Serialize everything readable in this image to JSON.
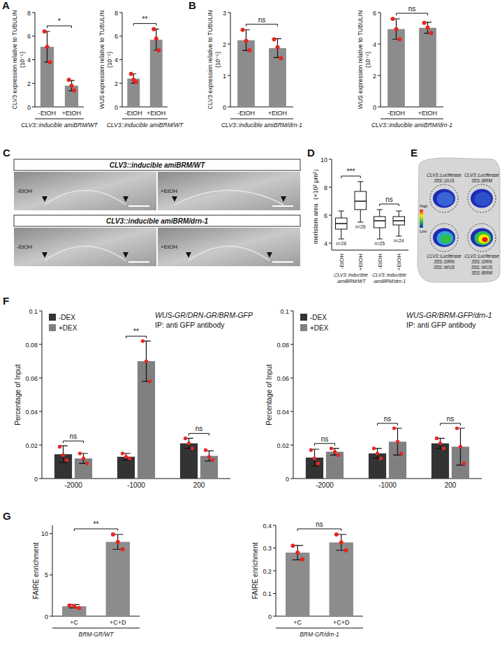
{
  "chart_data": [
    {
      "type": "bar",
      "panel_label": "A",
      "y_label": [
        "CLV3 expression  relative to TUBULIN",
        "(10⁻⁵)"
      ],
      "x_label": "CLV3::inducible amiBRM/WT",
      "categories": [
        "-EtOH",
        "+EtOH"
      ],
      "values": [
        5.1,
        1.8
      ],
      "errors": [
        1.3,
        0.45
      ],
      "points": [
        [
          6.4,
          3.8,
          5.1
        ],
        [
          2.3,
          1.4,
          1.8
        ]
      ],
      "ylim": [
        0,
        8
      ],
      "yticks": [
        0,
        2,
        4,
        6,
        8
      ],
      "color": "#8c8c8c",
      "significance": "*"
    },
    {
      "type": "bar",
      "y_label": [
        "WUS expression relative to TUBULIN",
        "(10⁻⁵)"
      ],
      "x_label": "CLV3::inducible amiBRM/WT",
      "categories": [
        "-EtOH",
        "+EtOH"
      ],
      "values": [
        2.4,
        5.7
      ],
      "errors": [
        0.4,
        0.9
      ],
      "points": [
        [
          2.8,
          2.1,
          2.3
        ],
        [
          6.6,
          4.8,
          5.8
        ]
      ],
      "ylim": [
        0,
        8
      ],
      "yticks": [
        0,
        2,
        4,
        6,
        8
      ],
      "color": "#8c8c8c",
      "significance": "**"
    },
    {
      "type": "bar",
      "panel_label": "B",
      "y_label": [
        "CLV3 expression  relative to TUBULIN",
        "(10⁻⁵)"
      ],
      "x_label": "CLV3::inducible amiBRM/drn-1",
      "categories": [
        "-EtOH",
        "+EtOH"
      ],
      "values": [
        2.12,
        1.87
      ],
      "errors": [
        0.33,
        0.3
      ],
      "points": [
        [
          2.45,
          1.8,
          2.1
        ],
        [
          2.15,
          1.55,
          1.9
        ]
      ],
      "ylim": [
        0,
        3
      ],
      "yticks": [
        0,
        1,
        2,
        3
      ],
      "color": "#8c8c8c",
      "significance": "ns"
    },
    {
      "type": "bar",
      "y_label": [
        "WUS expression relative to TUBULIN",
        "(10⁻⁵)"
      ],
      "x_label": "CLV3::inducible amiBRM/drn-1",
      "categories": [
        "-EtOH",
        "+EtOH"
      ],
      "values": [
        4.95,
        5.03
      ],
      "errors": [
        0.65,
        0.35
      ],
      "points": [
        [
          5.6,
          4.3,
          4.95
        ],
        [
          5.35,
          4.7,
          5.05
        ]
      ],
      "ylim": [
        0,
        6
      ],
      "yticks": [
        0,
        2,
        4,
        6
      ],
      "color": "#8c8c8c",
      "significance": "ns"
    },
    {
      "type": "image",
      "panel_label": "C",
      "rows": [
        {
          "title": "CLV3::inducible amiBRM/WT",
          "labels": [
            "-EtOH",
            "+EtOH"
          ]
        },
        {
          "title": "CLV3::inducible amiBRM/drn-1",
          "labels": [
            "-EtOH",
            "+EtOH"
          ]
        }
      ]
    },
    {
      "type": "box",
      "panel_label": "D",
      "y_label": "meristem area（×10² μm²）",
      "categories": [
        "-EtOH",
        "+EtOH",
        "-EtOH",
        "+EtOH"
      ],
      "group_labels": [
        [
          "CLV3::inducible",
          "-amiBRM/WT"
        ],
        [
          "CLV3::inducible",
          "-amiBRM/drn-1"
        ]
      ],
      "boxes": [
        {
          "min": 4.3,
          "q1": 5.0,
          "median": 5.4,
          "q3": 5.8,
          "max": 6.3,
          "n_label": "n=26"
        },
        {
          "min": 5.5,
          "q1": 6.4,
          "median": 7.0,
          "q3": 7.7,
          "max": 8.4,
          "n_label": "n=26"
        },
        {
          "min": 4.3,
          "q1": 5.1,
          "median": 5.6,
          "q3": 5.9,
          "max": 6.4,
          "n_label": "n=25"
        },
        {
          "min": 4.5,
          "q1": 5.3,
          "median": 5.6,
          "q3": 5.9,
          "max": 6.3,
          "n_label": "n=24"
        }
      ],
      "ylim": [
        3.5,
        10
      ],
      "yticks": [
        4,
        6,
        8,
        10
      ],
      "significance": [
        "***",
        "ns"
      ]
    },
    {
      "type": "image",
      "panel_label": "E",
      "scale_labels": [
        "High",
        "Low"
      ],
      "spots": [
        {
          "labels": [
            "CLV3::Luciferase",
            "35S::GUS"
          ]
        },
        {
          "labels": [
            "CLV3::Luciferase",
            "35S::BRM"
          ]
        },
        {
          "labels": [
            "CLV3::Luciferase",
            "35S::DRN",
            "35S::WUS"
          ]
        },
        {
          "labels": [
            "CLV3::Luciferase",
            "35S::DRN",
            "35S::WUS",
            "35S::BRM"
          ]
        }
      ]
    },
    {
      "type": "bar",
      "panel_label": "F",
      "title": [
        "WUS-GR/DRN-GR/BRM-GFP",
        "IP: anti GFP antibody"
      ],
      "y_label": "Percentage of Input",
      "categories": [
        "-2000",
        "-1000",
        "200"
      ],
      "legend": "top-left",
      "series": [
        {
          "name": "-DEX",
          "color": "#333333",
          "values": [
            0.0145,
            0.013,
            0.021
          ],
          "errors": [
            0.005,
            0.002,
            0.003
          ],
          "points": [
            [
              0.019,
              0.011,
              0.014
            ],
            [
              0.015,
              0.012,
              0.013
            ],
            [
              0.024,
              0.018,
              0.021
            ]
          ]
        },
        {
          "name": "+DEX",
          "color": "#808080",
          "values": [
            0.012,
            0.07,
            0.0135
          ],
          "errors": [
            0.003,
            0.012,
            0.003
          ],
          "points": [
            [
              0.015,
              0.009,
              0.012
            ],
            [
              0.082,
              0.058,
              0.07
            ],
            [
              0.017,
              0.011,
              0.013
            ]
          ]
        }
      ],
      "ylim": [
        0,
        0.1
      ],
      "yticks": [
        0,
        0.02,
        0.04,
        0.06,
        0.08,
        0.1
      ],
      "significance": [
        "ns",
        "**",
        "ns"
      ]
    },
    {
      "type": "bar",
      "title": [
        "WUS-GR/BRM-GFP/drn-1",
        "IP: anti GFP antibody"
      ],
      "y_label": "Percentage of Input",
      "categories": [
        "-2000",
        "-1000",
        "200"
      ],
      "legend": "top-left",
      "series": [
        {
          "name": "-DEX",
          "color": "#333333",
          "values": [
            0.0125,
            0.015,
            0.021
          ],
          "errors": [
            0.005,
            0.003,
            0.003
          ],
          "points": [
            [
              0.017,
              0.009,
              0.012
            ],
            [
              0.018,
              0.012,
              0.015
            ],
            [
              0.024,
              0.018,
              0.021
            ]
          ]
        },
        {
          "name": "+DEX",
          "color": "#808080",
          "values": [
            0.016,
            0.022,
            0.019
          ],
          "errors": [
            0.002,
            0.008,
            0.011
          ],
          "points": [
            [
              0.018,
              0.014,
              0.016
            ],
            [
              0.03,
              0.015,
              0.022
            ],
            [
              0.03,
              0.009,
              0.019
            ]
          ]
        }
      ],
      "ylim": [
        0,
        0.1
      ],
      "yticks": [
        0,
        0.02,
        0.04,
        0.06,
        0.08,
        0.1
      ],
      "significance": [
        "ns",
        "ns",
        "ns"
      ]
    },
    {
      "type": "bar",
      "panel_label": "G",
      "y_label": "FAIRE enrichment",
      "x_label": "BRM-GR/WT",
      "categories": [
        "+C",
        "+C+D"
      ],
      "values": [
        1.2,
        9.0
      ],
      "errors": [
        0.2,
        0.9
      ],
      "points": [
        [
          1.3,
          1.0,
          1.2
        ],
        [
          9.9,
          8.1,
          9.0
        ]
      ],
      "ylim": [
        0,
        11
      ],
      "yticks": [
        0,
        5,
        10
      ],
      "color": "#8c8c8c",
      "significance": "**"
    },
    {
      "type": "bar",
      "y_label": "FAIRE enrichment",
      "x_label": "BRM-GR/drn-1",
      "categories": [
        "+C",
        "+C+D"
      ],
      "values": [
        0.28,
        0.325
      ],
      "errors": [
        0.032,
        0.035
      ],
      "points": [
        [
          0.31,
          0.25,
          0.28
        ],
        [
          0.36,
          0.29,
          0.325
        ]
      ],
      "ylim": [
        0,
        0.4
      ],
      "yticks": [
        0,
        0.1,
        0.2,
        0.3,
        0.4
      ],
      "color": "#8c8c8c",
      "significance": "ns"
    }
  ]
}
